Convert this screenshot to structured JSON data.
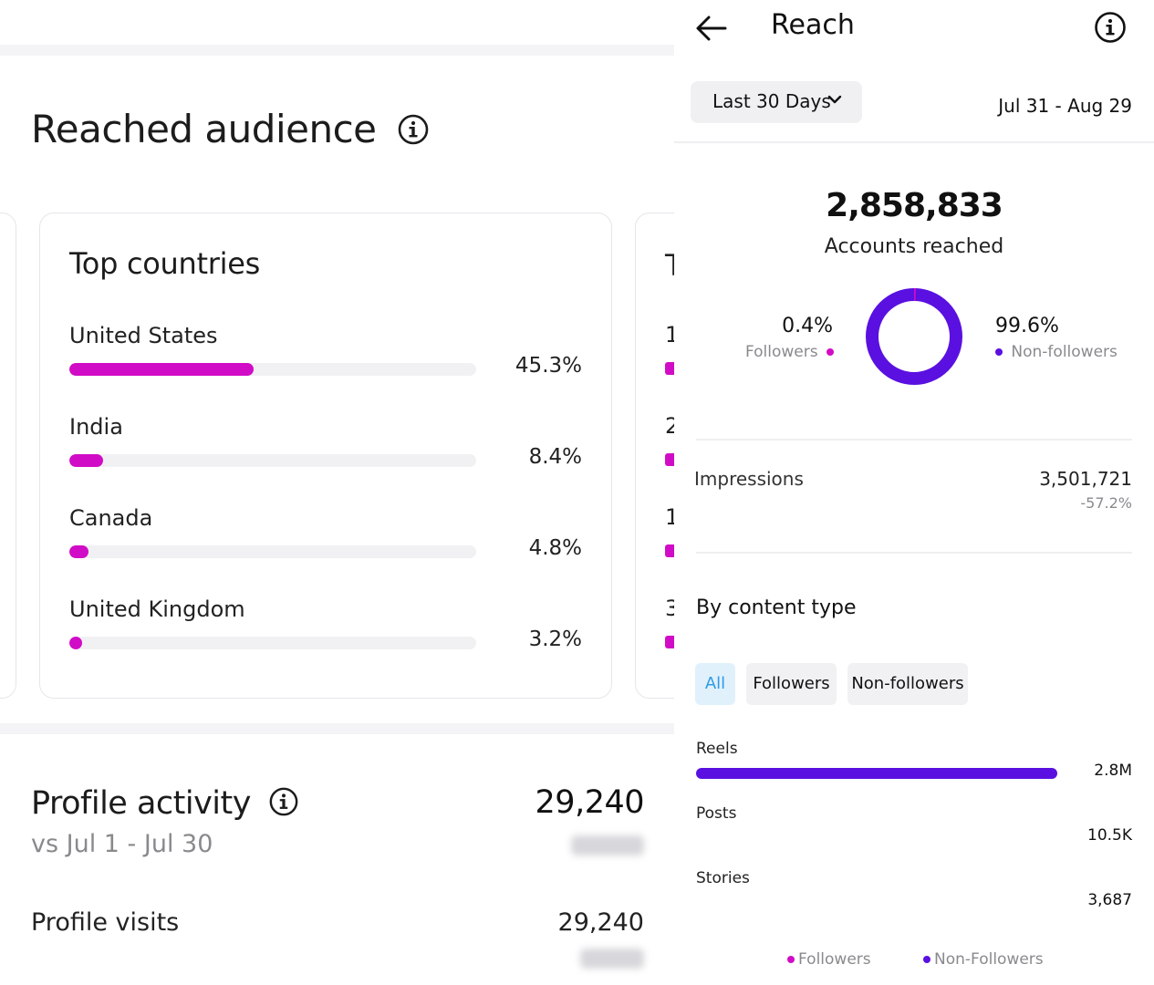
{
  "left": {
    "reached_audience_title": "Reached audience",
    "top_countries": {
      "title": "Top countries",
      "items": [
        {
          "name": "United States",
          "value": "45.3%",
          "fraction": 0.453
        },
        {
          "name": "India",
          "value": "8.4%",
          "fraction": 0.084
        },
        {
          "name": "Canada",
          "value": "4.8%",
          "fraction": 0.048
        },
        {
          "name": "United Kingdom",
          "value": "3.2%",
          "fraction": 0.032
        }
      ]
    },
    "peek_card": {
      "title_char": "T",
      "row_chars": [
        "1",
        "2",
        "1",
        "3"
      ]
    },
    "profile_activity": {
      "title": "Profile activity",
      "comparison": "vs  Jul 1 - Jul 30",
      "total": "29,240",
      "visits_label": "Profile visits",
      "visits_value": "29,240"
    }
  },
  "right": {
    "title": "Reach",
    "range_label": "Last 30 Days",
    "date_range": "Jul 31 - Aug 29",
    "accounts_reached": "2,858,833",
    "accounts_reached_label": "Accounts reached",
    "followers_pct": "0.4%",
    "followers_label": "Followers",
    "nonfollowers_pct": "99.6%",
    "nonfollowers_label": "Non-followers",
    "followers_fraction": 0.004,
    "impressions_label": "Impressions",
    "impressions_value": "3,501,721",
    "impressions_delta": "-57.2%",
    "content_type_title": "By content type",
    "filters": [
      "All",
      "Followers",
      "Non-followers"
    ],
    "content_types": [
      {
        "label": "Reels",
        "value": "2.8M",
        "fraction": 1.0
      },
      {
        "label": "Posts",
        "value": "10.5K",
        "fraction": 0.0
      },
      {
        "label": "Stories",
        "value": "3,687",
        "fraction": 0.0
      }
    ],
    "legend": [
      "Followers",
      "Non-Followers"
    ],
    "colors": {
      "followers": "#d10cc6",
      "nonfollowers": "#5a10e0",
      "country_bar": "#d10cc6",
      "chip_active_bg": "#e1f1fb",
      "chip_active_text": "#2f9be6"
    }
  }
}
